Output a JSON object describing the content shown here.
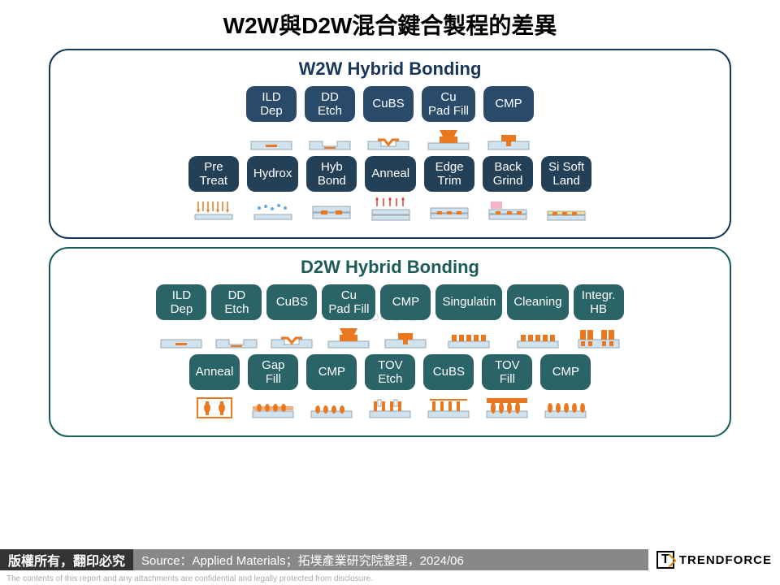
{
  "title": "W2W與D2W混合鍵合製程的差異",
  "w2w": {
    "title": "W2W Hybrid Bonding",
    "chip_color_row1": "#2a4a6a",
    "chip_color_row2": "#234056",
    "border_color": "#18365a",
    "row1": [
      {
        "label": "ILD\nDep",
        "icon": "wafer-flat"
      },
      {
        "label": "DD\nEtch",
        "icon": "wafer-trench"
      },
      {
        "label": "CuBS",
        "icon": "wafer-seed"
      },
      {
        "label": "Cu\nPad Fill",
        "icon": "wafer-fill"
      },
      {
        "label": "CMP",
        "icon": "wafer-cmp"
      }
    ],
    "row2": [
      {
        "label": "Pre\nTreat",
        "icon": "pre-treat"
      },
      {
        "label": "Hydrox",
        "icon": "hydrox"
      },
      {
        "label": "Hyb\nBond",
        "icon": "stack"
      },
      {
        "label": "Anneal",
        "icon": "anneal"
      },
      {
        "label": "Edge\nTrim",
        "icon": "edge-trim"
      },
      {
        "label": "Back\nGrind",
        "icon": "grind"
      },
      {
        "label": "Si Soft\nLand",
        "icon": "soft-land"
      }
    ]
  },
  "d2w": {
    "title": "D2W Hybrid Bonding",
    "chip_color": "#2a6466",
    "border_color": "#1d5a5a",
    "row1": [
      {
        "label": "ILD\nDep",
        "icon": "wafer-flat"
      },
      {
        "label": "DD\nEtch",
        "icon": "wafer-trench"
      },
      {
        "label": "CuBS",
        "icon": "wafer-seed"
      },
      {
        "label": "Cu\nPad Fill",
        "icon": "wafer-fill"
      },
      {
        "label": "CMP",
        "icon": "wafer-cmp"
      },
      {
        "label": "Singulatin",
        "icon": "dies"
      },
      {
        "label": "Cleaning",
        "icon": "dies"
      },
      {
        "label": "Integr.\nHB",
        "icon": "integr-hb"
      }
    ],
    "row2": [
      {
        "label": "Anneal",
        "icon": "d-anneal"
      },
      {
        "label": "Gap\nFill",
        "icon": "gap-fill"
      },
      {
        "label": "CMP",
        "icon": "d-cmp1"
      },
      {
        "label": "TOV\nEtch",
        "icon": "tov-etch"
      },
      {
        "label": "CuBS",
        "icon": "tov-seed"
      },
      {
        "label": "TOV\nFill",
        "icon": "tov-fill"
      },
      {
        "label": "CMP",
        "icon": "d-cmp2"
      }
    ]
  },
  "watermark": "TOP                                                      UTE",
  "footer": {
    "copyright": "版權所有，翻印必究",
    "source": "Source：Applied Materials；拓墣產業研究院整理，2024/06",
    "logo_text": "TRENDFORCE",
    "logo_letter": "T"
  },
  "disclaimer": "The contents of this report and any attachments are confidential and legally protected from disclosure.",
  "colors": {
    "copper": "#e97820",
    "ild": "#cfe2ee",
    "outline": "#9aa5ad",
    "chip_text": "#ffffff",
    "red": "#e04030",
    "pink": "#f5b3c8",
    "yellow": "#f7e48b"
  }
}
